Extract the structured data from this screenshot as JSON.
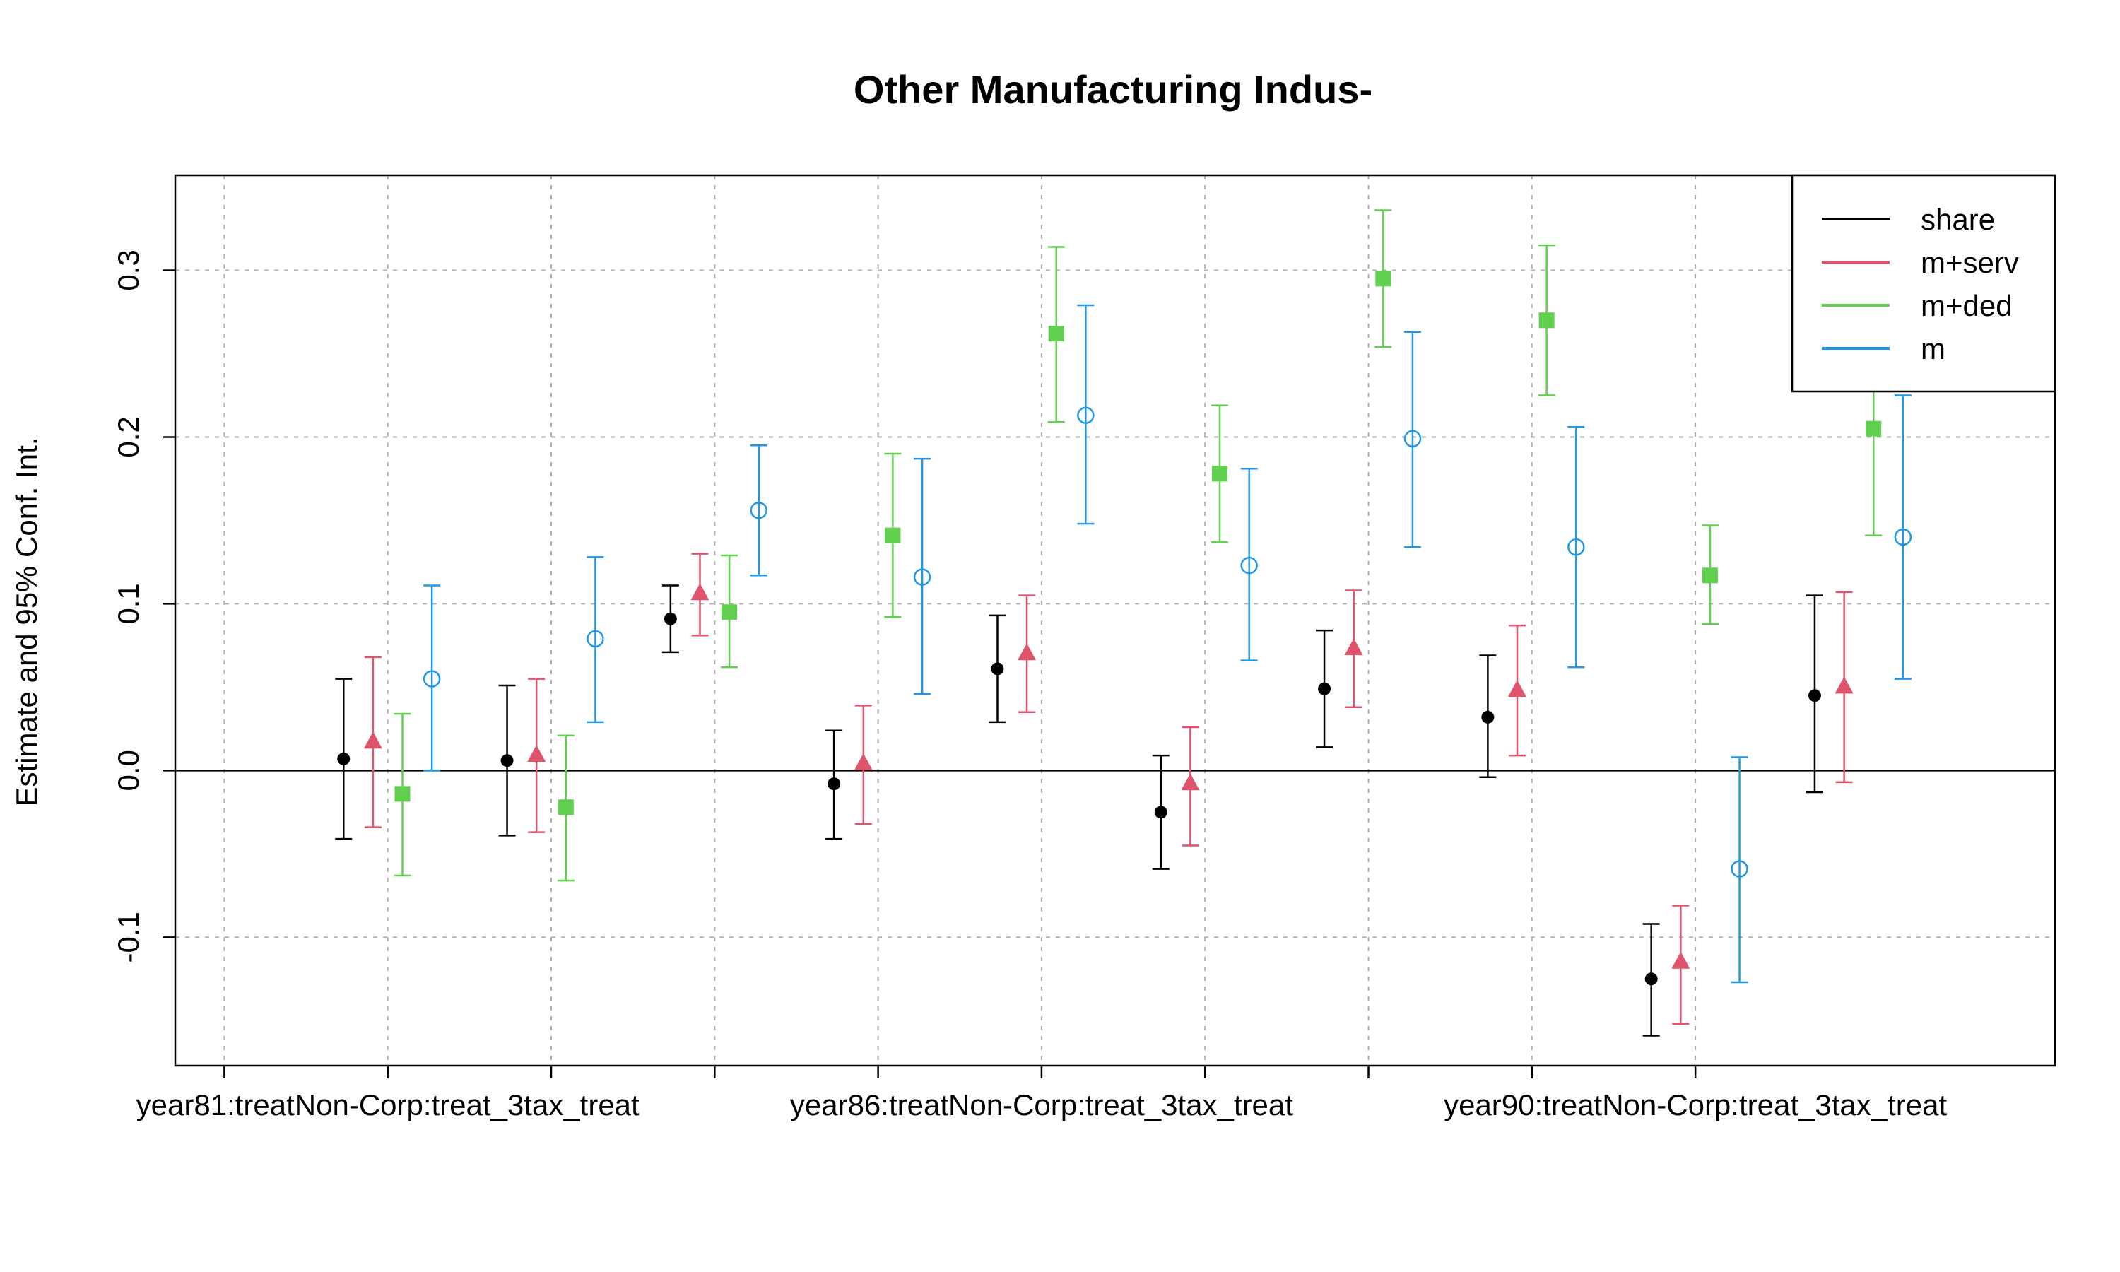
{
  "chart_data": {
    "type": "errorbar",
    "title": "Other Manufacturing Indus-",
    "ylabel": "Estimate and 95% Conf. Int.",
    "xlabel": "",
    "ylim": [
      -0.177,
      0.357
    ],
    "xlim": [
      0.7,
      12.2
    ],
    "yticks": [
      -0.1,
      0.0,
      0.1,
      0.2,
      0.3
    ],
    "ytick_labels": [
      "-0.1",
      "0.0",
      "0.1",
      "0.2",
      "0.3"
    ],
    "xticks": [
      1,
      2,
      3,
      4,
      5,
      6,
      7,
      8,
      9,
      10
    ],
    "xtick_labels": [
      {
        "pos": 2,
        "text": "year81:treatNon-Corp:treat_3tax_treat"
      },
      {
        "pos": 6,
        "text": "year86:treatNon-Corp:treat_3tax_treat"
      },
      {
        "pos": 10,
        "text": "year90:treatNon-Corp:treat_3tax_treat"
      }
    ],
    "grid": true,
    "zero_line": 0,
    "legend_position": "top-right",
    "series": [
      {
        "name": "share",
        "color": "#000000",
        "marker": "dot",
        "x": [
          1.73,
          2.73,
          3.73,
          4.73,
          5.73,
          6.73,
          7.73,
          8.73,
          9.73,
          10.73
        ],
        "estimate": [
          0.007,
          0.006,
          0.091,
          -0.008,
          0.061,
          -0.025,
          0.049,
          0.032,
          -0.125,
          0.045
        ],
        "lower": [
          -0.041,
          -0.039,
          0.071,
          -0.041,
          0.029,
          -0.059,
          0.014,
          -0.004,
          -0.159,
          -0.013
        ],
        "upper": [
          0.055,
          0.051,
          0.111,
          0.024,
          0.093,
          0.009,
          0.084,
          0.069,
          -0.092,
          0.105
        ]
      },
      {
        "name": "m+serv",
        "color": "#DF536B",
        "marker": "triangle",
        "x": [
          1.91,
          2.91,
          3.91,
          4.91,
          5.91,
          6.91,
          7.91,
          8.91,
          9.91,
          10.91
        ],
        "estimate": [
          0.017,
          0.009,
          0.106,
          0.004,
          0.07,
          -0.008,
          0.073,
          0.048,
          -0.115,
          0.05
        ],
        "lower": [
          -0.034,
          -0.037,
          0.081,
          -0.032,
          0.035,
          -0.045,
          0.038,
          0.009,
          -0.152,
          -0.007
        ],
        "upper": [
          0.068,
          0.055,
          0.13,
          0.039,
          0.105,
          0.026,
          0.108,
          0.087,
          -0.081,
          0.107
        ]
      },
      {
        "name": "m+ded",
        "color": "#61D04F",
        "marker": "square",
        "x": [
          2.09,
          3.09,
          4.09,
          5.09,
          6.09,
          7.09,
          8.09,
          9.09,
          10.09,
          11.09
        ],
        "estimate": [
          -0.014,
          -0.022,
          0.095,
          0.141,
          0.262,
          0.178,
          0.295,
          0.27,
          0.117,
          0.205
        ],
        "lower": [
          -0.063,
          -0.066,
          0.062,
          0.092,
          0.209,
          0.137,
          0.254,
          0.225,
          0.088,
          0.141
        ],
        "upper": [
          0.034,
          0.021,
          0.129,
          0.19,
          0.314,
          0.219,
          0.336,
          0.315,
          0.147,
          0.27
        ]
      },
      {
        "name": "m",
        "color": "#2297E6",
        "marker": "open-circle",
        "x": [
          2.27,
          3.27,
          4.27,
          5.27,
          6.27,
          7.27,
          8.27,
          9.27,
          10.27,
          11.27
        ],
        "estimate": [
          0.055,
          0.079,
          0.156,
          0.116,
          0.213,
          0.123,
          0.199,
          0.134,
          -0.059,
          0.14
        ],
        "lower": [
          0.0,
          0.029,
          0.117,
          0.046,
          0.148,
          0.066,
          0.134,
          0.062,
          -0.127,
          0.055
        ],
        "upper": [
          0.111,
          0.128,
          0.195,
          0.187,
          0.279,
          0.181,
          0.263,
          0.206,
          0.008,
          0.225
        ]
      }
    ]
  }
}
